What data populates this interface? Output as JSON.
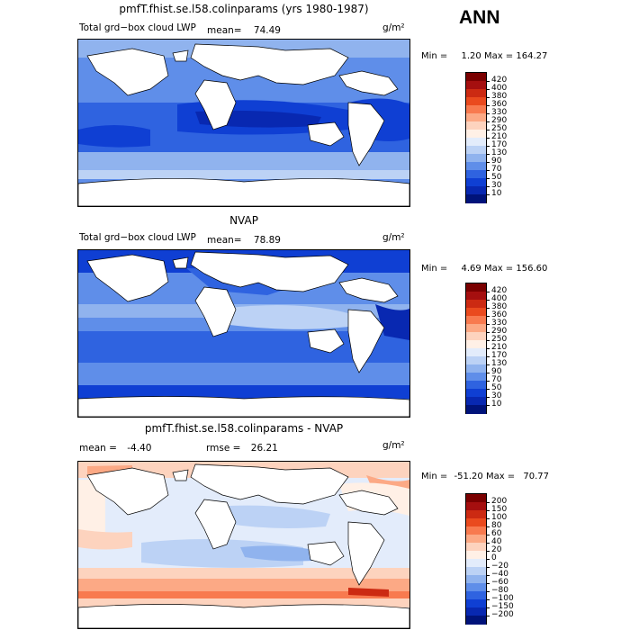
{
  "header": {
    "season": "ANN"
  },
  "panels": [
    {
      "id": "model",
      "title": "pmfT.fhist.se.l58.colinparams (yrs 1980-1987)",
      "field_label": "Total grd−box cloud LWP",
      "mean_label": "mean=",
      "mean_value": "74.49",
      "units": "g/m²",
      "min_label": "Min =",
      "min_value": "1.20",
      "max_label": "Max =",
      "max_value": "164.27"
    },
    {
      "id": "obs",
      "title": "NVAP",
      "field_label": "Total grd−box cloud LWP",
      "mean_label": "mean=",
      "mean_value": "78.89",
      "units": "g/m²",
      "min_label": "Min =",
      "min_value": "4.69",
      "max_label": "Max =",
      "max_value": "156.60"
    },
    {
      "id": "diff",
      "title": "pmfT.fhist.se.l58.colinparams - NVAP",
      "mean_label": "mean =",
      "mean_value": "-4.40",
      "rmse_label": "rmse =",
      "rmse_value": "26.21",
      "units": "g/m²",
      "min_label": "Min =",
      "min_value": "-51.20",
      "max_label": "Max =",
      "max_value": "70.77"
    }
  ],
  "colorbars": {
    "abs": {
      "labels": [
        "420",
        "400",
        "380",
        "360",
        "330",
        "290",
        "250",
        "210",
        "170",
        "130",
        "90",
        "70",
        "50",
        "30",
        "10"
      ],
      "colors": [
        "#7a0000",
        "#a50f0f",
        "#cc2a12",
        "#ea4a1e",
        "#f87a4f",
        "#fca985",
        "#fdd3be",
        "#fff0e6",
        "#e3ecfb",
        "#bcd2f5",
        "#90b3ee",
        "#5f8ee9",
        "#2f63e0",
        "#0f3fd3",
        "#0828b1",
        "#00137a"
      ]
    },
    "diff": {
      "labels": [
        "200",
        "150",
        "100",
        "80",
        "60",
        "40",
        "20",
        "0",
        "−20",
        "−40",
        "−60",
        "−80",
        "−100",
        "−150",
        "−200"
      ],
      "colors": [
        "#7a0000",
        "#a50f0f",
        "#cc2a12",
        "#ea4a1e",
        "#f87a4f",
        "#fca985",
        "#fdd3be",
        "#fff0e6",
        "#e3ecfb",
        "#bcd2f5",
        "#90b3ee",
        "#5f8ee9",
        "#2f63e0",
        "#0f3fd3",
        "#0828b1",
        "#00137a"
      ]
    }
  }
}
